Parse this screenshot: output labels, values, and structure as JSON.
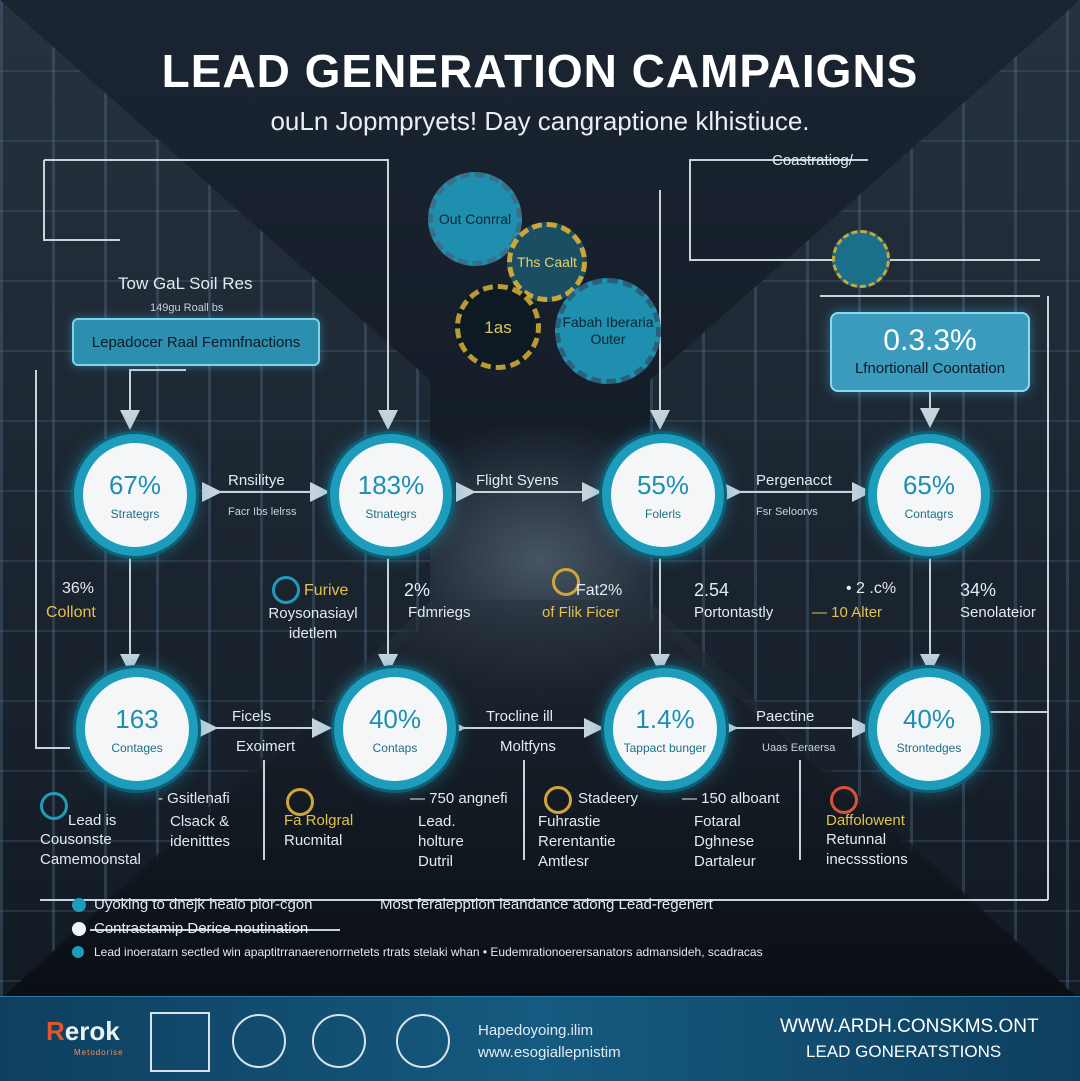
{
  "title": "LEAD GENERATION CAMPAIGNS",
  "subtitle": "ouLn Jopmpryets! Day cangraptione klhistiuce.",
  "top_right_label": "Coastratiog/",
  "left_panel": {
    "heading": "Tow GaL Soil Res",
    "subheading": "149gu Roall bs",
    "pill": "Lepadocer Raal Femnfnactions"
  },
  "gears": [
    {
      "label": "Out Conrral"
    },
    {
      "label": "Ths Caalt"
    },
    {
      "label": "1as"
    },
    {
      "label": "Fabah Iberaria Outer"
    }
  ],
  "stat_box": {
    "value": "0.3.3%",
    "label": "Lfnortionall Coontation"
  },
  "row1": [
    {
      "value": "67%",
      "label": "Strategrs"
    },
    {
      "value": "183%",
      "label": "Stnategrs"
    },
    {
      "value": "55%",
      "label": "Folerls"
    },
    {
      "value": "65%",
      "label": "Contagrs"
    }
  ],
  "row1_links": [
    {
      "label": "Rnsilitye",
      "sub": "Facr Ibs lelrss"
    },
    {
      "label": "Flight Syens",
      "sub": ""
    },
    {
      "label": "Pergenacct",
      "sub": "Fsr Seloorvs"
    }
  ],
  "mid_labels": [
    {
      "value": "36%",
      "label": "Collont"
    },
    {
      "value": "Furive",
      "label": "Roysonasiayl idetlem"
    },
    {
      "value": "2%",
      "label": "Fdmriegs"
    },
    {
      "value": "Fat2%",
      "label": "of Flik Ficer"
    },
    {
      "value": "2.54",
      "label": "Portontastly"
    },
    {
      "value": "• 2 .c%",
      "label": "— 10 Alter"
    },
    {
      "value": "34%",
      "label": "Senolateior"
    }
  ],
  "row2": [
    {
      "value": "163",
      "label": "Contages"
    },
    {
      "value": "40%",
      "label": "Contaps"
    },
    {
      "value": "1.4%",
      "label": "Tappact bunger"
    },
    {
      "value": "40%",
      "label": "Strontedges"
    }
  ],
  "row2_links": [
    {
      "label": "Ficels",
      "sub": "Exoimert"
    },
    {
      "label": "Trocline ill",
      "sub": "Moltfyns"
    },
    {
      "label": "Paectine",
      "sub": "Uaas Eeraersa"
    }
  ],
  "bottom_labels": [
    {
      "a": "Lead is",
      "b": "Cousonste Camemoonstal"
    },
    {
      "a": "- Gsitlenafi",
      "b": "Clsack & idenitttes"
    },
    {
      "a": "Fa Rolgral",
      "b": "Rucmital"
    },
    {
      "a": "— 750 angnefi",
      "b": "Lead. holture Dutril"
    },
    {
      "a": "Stadeery",
      "b": "Fuhrastie Rerentantie Amtlesr"
    },
    {
      "a": "— 150 alboant",
      "b": "Fotaral Dghnese Dartaleur"
    },
    {
      "a": "Daffolowent",
      "b": "Retunnal inecssstions"
    }
  ],
  "notes": [
    "Uyoking to dnejk healo pior-cgon",
    "Contrastamip Derice noutination",
    "Lead inoeratarn sectled win apaptitrranaerenorrnetets rtrats stelaki whan • Eudemrationoerersanators admansideh, scadracas"
  ],
  "note_right": "Most feralepption leandance adong Lead-regenert",
  "footer": {
    "logo": "erok",
    "logo_r": "R",
    "logo_sub": "Metodorise",
    "contact1": "Hapedoyoing.ilim",
    "contact2": "www.esogiallepnistim",
    "url": "WWW.ARDH.CONSKMS.ONT",
    "tagline": "LEAD GONERATSTIONS"
  },
  "colors": {
    "accent": "#1d9cbb",
    "gold": "#e2c24a",
    "footer": "#155a80"
  }
}
